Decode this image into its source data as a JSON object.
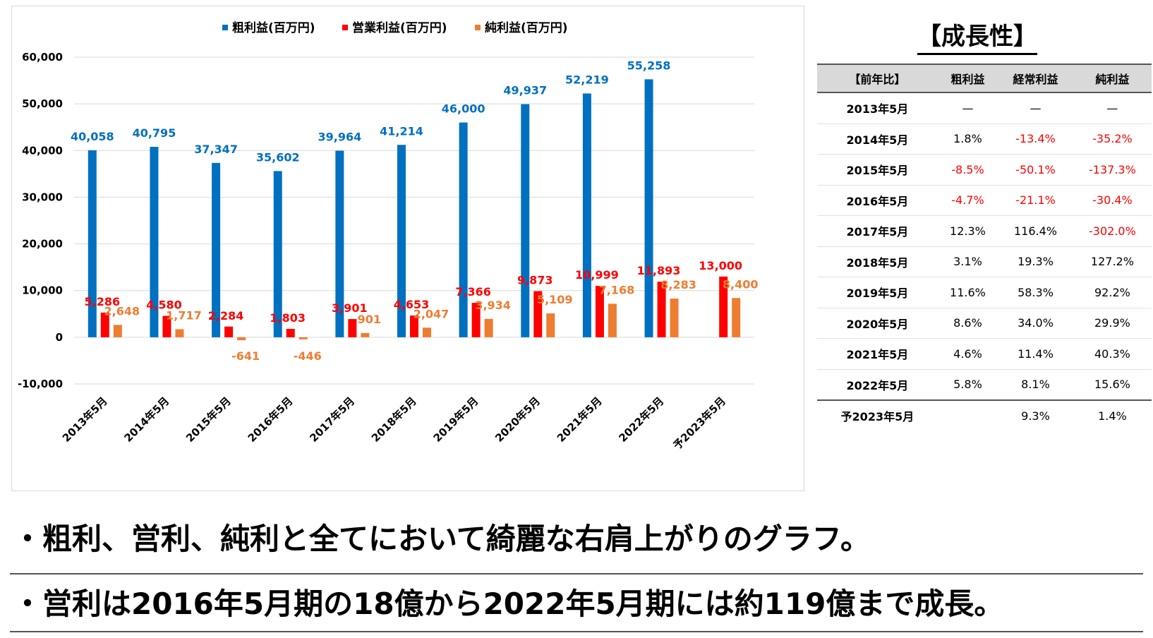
{
  "chart_data": {
    "type": "bar",
    "categories": [
      "2013年5月",
      "2014年5月",
      "2015年5月",
      "2016年5月",
      "2017年5月",
      "2018年5月",
      "2019年5月",
      "2020年5月",
      "2021年5月",
      "2022年5月",
      "予2023年5月"
    ],
    "series": [
      {
        "name": "粗利益(百万円)",
        "color": "#0070c0",
        "values": [
          40058,
          40795,
          37347,
          35602,
          39964,
          41214,
          46000,
          49937,
          52219,
          55258,
          null
        ],
        "labels": [
          "40,058",
          "40,795",
          "37,347",
          "35,602",
          "39,964",
          "41,214",
          "46,000",
          "49,937",
          "52,219",
          "55,258",
          ""
        ]
      },
      {
        "name": "営業利益(百万円)",
        "color": "#ff0000",
        "values": [
          5286,
          4580,
          2284,
          1803,
          3901,
          4653,
          7366,
          9873,
          10999,
          11893,
          13000
        ],
        "labels": [
          "5,286",
          "4,580",
          "2,284",
          "1,803",
          "3,901",
          "4,653",
          "7,366",
          "9,873",
          "10,999",
          "11,893",
          "13,000"
        ]
      },
      {
        "name": "純利益(百万円)",
        "color": "#ed7d31",
        "values": [
          2648,
          1717,
          -641,
          -446,
          901,
          2047,
          3934,
          5109,
          7168,
          8283,
          8400
        ],
        "labels": [
          "2,648",
          "1,717",
          "-641",
          "-446",
          "901",
          "2,047",
          "3,934",
          "5,109",
          "7,168",
          "8,283",
          "8,400"
        ]
      }
    ],
    "ylim": [
      -10000,
      60000
    ],
    "yticks": [
      -10000,
      0,
      10000,
      20000,
      30000,
      40000,
      50000,
      60000
    ],
    "ytick_labels": [
      "-10,000",
      "0",
      "10,000",
      "20,000",
      "30,000",
      "40,000",
      "50,000",
      "60,000"
    ],
    "grid": true,
    "legend_position": "top-center"
  },
  "growth": {
    "title": "【成長性】",
    "headers": [
      "【前年比】",
      "粗利益",
      "経常利益",
      "純利益"
    ],
    "rows": [
      {
        "label": "2013年5月",
        "cells": [
          "—",
          "—",
          "—"
        ],
        "neg": [
          false,
          false,
          false
        ]
      },
      {
        "label": "2014年5月",
        "cells": [
          "1.8%",
          "-13.4%",
          "-35.2%"
        ],
        "neg": [
          false,
          true,
          true
        ]
      },
      {
        "label": "2015年5月",
        "cells": [
          "-8.5%",
          "-50.1%",
          "-137.3%"
        ],
        "neg": [
          true,
          true,
          true
        ]
      },
      {
        "label": "2016年5月",
        "cells": [
          "-4.7%",
          "-21.1%",
          "-30.4%"
        ],
        "neg": [
          true,
          true,
          true
        ]
      },
      {
        "label": "2017年5月",
        "cells": [
          "12.3%",
          "116.4%",
          "-302.0%"
        ],
        "neg": [
          false,
          false,
          true
        ]
      },
      {
        "label": "2018年5月",
        "cells": [
          "3.1%",
          "19.3%",
          "127.2%"
        ],
        "neg": [
          false,
          false,
          false
        ]
      },
      {
        "label": "2019年5月",
        "cells": [
          "11.6%",
          "58.3%",
          "92.2%"
        ],
        "neg": [
          false,
          false,
          false
        ]
      },
      {
        "label": "2020年5月",
        "cells": [
          "8.6%",
          "34.0%",
          "29.9%"
        ],
        "neg": [
          false,
          false,
          false
        ]
      },
      {
        "label": "2021年5月",
        "cells": [
          "4.6%",
          "11.4%",
          "40.3%"
        ],
        "neg": [
          false,
          false,
          false
        ]
      },
      {
        "label": "2022年5月",
        "cells": [
          "5.8%",
          "8.1%",
          "15.6%"
        ],
        "neg": [
          false,
          false,
          false
        ]
      },
      {
        "label": "予2023年5月",
        "cells": [
          "",
          "9.3%",
          "1.4%"
        ],
        "neg": [
          false,
          false,
          false
        ]
      }
    ]
  },
  "bullets": [
    "・粗利、営利、純利と全てにおいて綺麗な右肩上がりのグラフ。",
    "・営利は2016年5月期の18億から2022年5月期には約119億まで成長。"
  ]
}
